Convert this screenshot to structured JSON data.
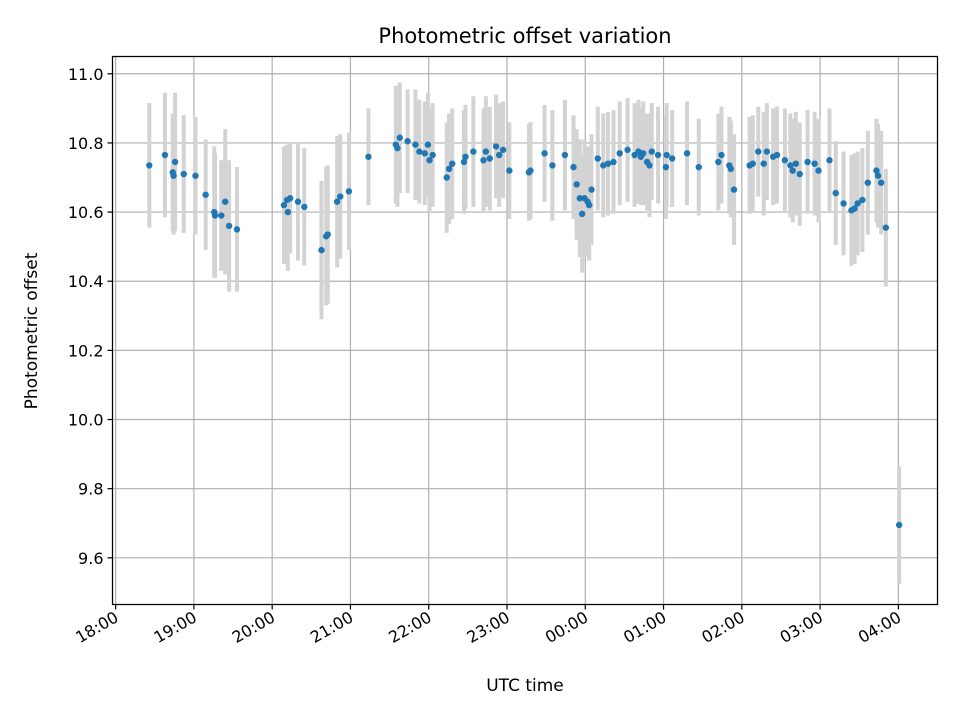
{
  "chart_data": {
    "type": "scatter",
    "title": "Photometric offset variation",
    "xlabel": "UTC time",
    "ylabel": "Photometric offset",
    "xlim_hours": [
      17.96,
      28.5
    ],
    "ylim": [
      9.465,
      11.05
    ],
    "grid": true,
    "colors": {
      "point": "#1f77b4",
      "errorbar": "#d3d3d3",
      "grid": "#b0b0b0"
    },
    "x_ticks": [
      {
        "hour": 18,
        "label": "18:00"
      },
      {
        "hour": 19,
        "label": "19:00"
      },
      {
        "hour": 20,
        "label": "20:00"
      },
      {
        "hour": 21,
        "label": "21:00"
      },
      {
        "hour": 22,
        "label": "22:00"
      },
      {
        "hour": 23,
        "label": "23:00"
      },
      {
        "hour": 24,
        "label": "00:00"
      },
      {
        "hour": 25,
        "label": "01:00"
      },
      {
        "hour": 26,
        "label": "02:00"
      },
      {
        "hour": 27,
        "label": "03:00"
      },
      {
        "hour": 28,
        "label": "04:00"
      }
    ],
    "y_ticks": [
      {
        "value": 9.6,
        "label": "9.6"
      },
      {
        "value": 9.8,
        "label": "9.8"
      },
      {
        "value": 10.0,
        "label": "10.0"
      },
      {
        "value": 10.2,
        "label": "10.2"
      },
      {
        "value": 10.4,
        "label": "10.4"
      },
      {
        "value": 10.6,
        "label": "10.6"
      },
      {
        "value": 10.8,
        "label": "10.8"
      },
      {
        "value": 11.0,
        "label": "11.0"
      }
    ],
    "points": [
      [
        18.43,
        10.735,
        0.18
      ],
      [
        18.63,
        10.765,
        0.18
      ],
      [
        18.73,
        10.715,
        0.17
      ],
      [
        18.74,
        10.705,
        0.17
      ],
      [
        18.76,
        10.745,
        0.2
      ],
      [
        18.87,
        10.71,
        0.17
      ],
      [
        19.02,
        10.705,
        0.17
      ],
      [
        19.15,
        10.65,
        0.16
      ],
      [
        19.26,
        10.6,
        0.19
      ],
      [
        19.27,
        10.59,
        0.18
      ],
      [
        19.35,
        10.59,
        0.16
      ],
      [
        19.4,
        10.63,
        0.21
      ],
      [
        19.45,
        10.56,
        0.19
      ],
      [
        19.55,
        10.55,
        0.18
      ],
      [
        20.15,
        10.62,
        0.17
      ],
      [
        20.19,
        10.635,
        0.16
      ],
      [
        20.2,
        10.6,
        0.17
      ],
      [
        20.23,
        10.64,
        0.16
      ],
      [
        20.33,
        10.63,
        0.17
      ],
      [
        20.41,
        10.615,
        0.17
      ],
      [
        20.63,
        10.49,
        0.2
      ],
      [
        20.69,
        10.53,
        0.2
      ],
      [
        20.71,
        10.535,
        0.2
      ],
      [
        20.83,
        10.63,
        0.19
      ],
      [
        20.87,
        10.645,
        0.18
      ],
      [
        20.98,
        10.66,
        0.17
      ],
      [
        21.23,
        10.76,
        0.14
      ],
      [
        21.58,
        10.795,
        0.17
      ],
      [
        21.6,
        10.785,
        0.17
      ],
      [
        21.63,
        10.815,
        0.16
      ],
      [
        21.73,
        10.805,
        0.15
      ],
      [
        21.83,
        10.795,
        0.16
      ],
      [
        21.88,
        10.775,
        0.15
      ],
      [
        21.95,
        10.77,
        0.15
      ],
      [
        21.99,
        10.795,
        0.15
      ],
      [
        22.01,
        10.75,
        0.15
      ],
      [
        22.05,
        10.765,
        0.15
      ],
      [
        22.23,
        10.7,
        0.16
      ],
      [
        22.26,
        10.725,
        0.16
      ],
      [
        22.3,
        10.74,
        0.16
      ],
      [
        22.45,
        10.745,
        0.15
      ],
      [
        22.47,
        10.76,
        0.15
      ],
      [
        22.57,
        10.775,
        0.16
      ],
      [
        22.7,
        10.75,
        0.15
      ],
      [
        22.73,
        10.775,
        0.16
      ],
      [
        22.78,
        10.755,
        0.15
      ],
      [
        22.86,
        10.79,
        0.15
      ],
      [
        22.9,
        10.765,
        0.15
      ],
      [
        22.95,
        10.78,
        0.14
      ],
      [
        23.03,
        10.72,
        0.14
      ],
      [
        23.28,
        10.715,
        0.14
      ],
      [
        23.3,
        10.72,
        0.14
      ],
      [
        23.48,
        10.77,
        0.14
      ],
      [
        23.58,
        10.735,
        0.16
      ],
      [
        23.74,
        10.765,
        0.16
      ],
      [
        23.85,
        10.73,
        0.15
      ],
      [
        23.89,
        10.68,
        0.16
      ],
      [
        23.93,
        10.64,
        0.17
      ],
      [
        23.96,
        10.595,
        0.17
      ],
      [
        23.99,
        10.64,
        0.17
      ],
      [
        24.03,
        10.63,
        0.16
      ],
      [
        24.05,
        10.62,
        0.16
      ],
      [
        24.08,
        10.665,
        0.16
      ],
      [
        24.16,
        10.755,
        0.15
      ],
      [
        24.23,
        10.735,
        0.15
      ],
      [
        24.29,
        10.74,
        0.15
      ],
      [
        24.36,
        10.745,
        0.15
      ],
      [
        24.44,
        10.77,
        0.15
      ],
      [
        24.54,
        10.78,
        0.15
      ],
      [
        24.63,
        10.765,
        0.15
      ],
      [
        24.68,
        10.775,
        0.15
      ],
      [
        24.71,
        10.76,
        0.14
      ],
      [
        24.74,
        10.77,
        0.15
      ],
      [
        24.79,
        10.745,
        0.14
      ],
      [
        24.82,
        10.735,
        0.15
      ],
      [
        24.85,
        10.775,
        0.14
      ],
      [
        24.93,
        10.765,
        0.14
      ],
      [
        25.03,
        10.73,
        0.15
      ],
      [
        25.04,
        10.765,
        0.15
      ],
      [
        25.11,
        10.755,
        0.14
      ],
      [
        25.3,
        10.77,
        0.15
      ],
      [
        25.45,
        10.73,
        0.14
      ],
      [
        25.7,
        10.745,
        0.14
      ],
      [
        25.74,
        10.765,
        0.14
      ],
      [
        25.84,
        10.735,
        0.14
      ],
      [
        25.86,
        10.725,
        0.14
      ],
      [
        25.9,
        10.665,
        0.16
      ],
      [
        26.1,
        10.735,
        0.14
      ],
      [
        26.14,
        10.74,
        0.14
      ],
      [
        26.21,
        10.775,
        0.13
      ],
      [
        26.28,
        10.74,
        0.15
      ],
      [
        26.32,
        10.775,
        0.14
      ],
      [
        26.4,
        10.76,
        0.14
      ],
      [
        26.45,
        10.765,
        0.14
      ],
      [
        26.55,
        10.75,
        0.15
      ],
      [
        26.62,
        10.735,
        0.15
      ],
      [
        26.65,
        10.72,
        0.15
      ],
      [
        26.69,
        10.74,
        0.15
      ],
      [
        26.74,
        10.71,
        0.15
      ],
      [
        26.84,
        10.745,
        0.15
      ],
      [
        26.93,
        10.74,
        0.15
      ],
      [
        26.98,
        10.72,
        0.15
      ],
      [
        27.12,
        10.75,
        0.15
      ],
      [
        27.2,
        10.655,
        0.15
      ],
      [
        27.3,
        10.625,
        0.15
      ],
      [
        27.4,
        10.605,
        0.16
      ],
      [
        27.44,
        10.61,
        0.16
      ],
      [
        27.48,
        10.625,
        0.15
      ],
      [
        27.54,
        10.635,
        0.15
      ],
      [
        27.61,
        10.685,
        0.15
      ],
      [
        27.72,
        10.72,
        0.15
      ],
      [
        27.74,
        10.705,
        0.15
      ],
      [
        27.78,
        10.685,
        0.15
      ],
      [
        27.84,
        10.555,
        0.17
      ],
      [
        28.01,
        9.695,
        0.17
      ]
    ]
  }
}
